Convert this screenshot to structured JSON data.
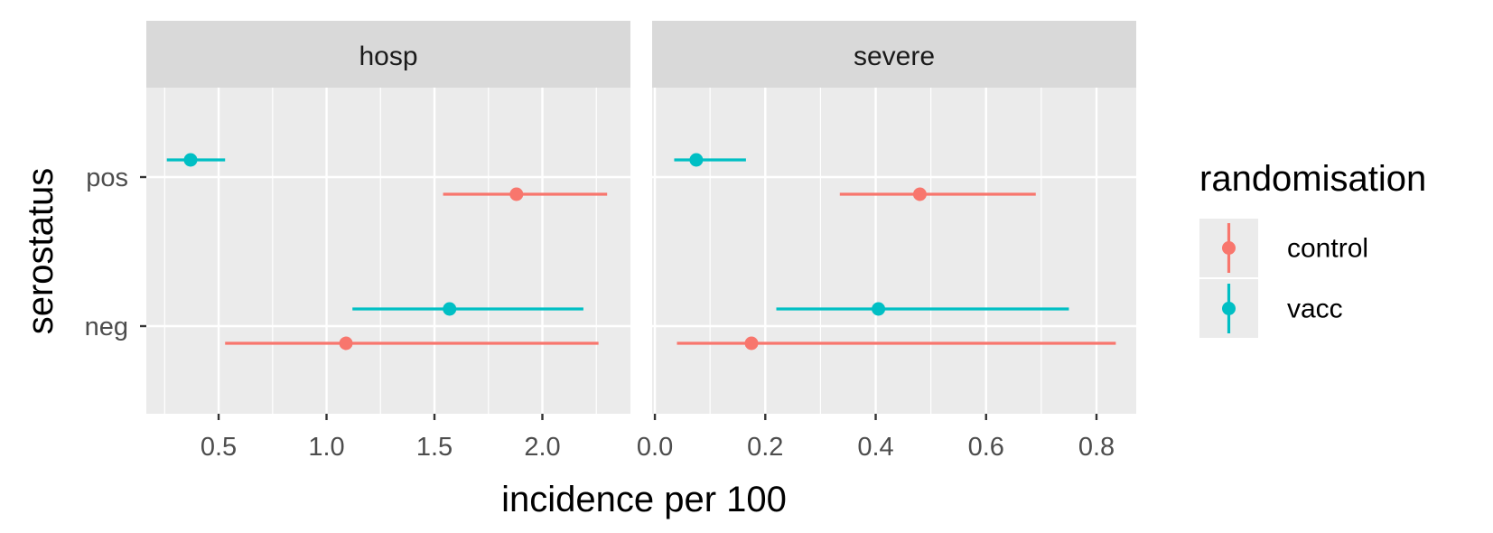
{
  "chart_data": {
    "type": "pointrange",
    "xlabel": "incidence per 100",
    "ylabel": "serostatus",
    "y_categories": [
      "pos",
      "neg"
    ],
    "legend": {
      "title": "randomisation",
      "position": "right",
      "entries": [
        {
          "name": "control",
          "color": "#F8766D"
        },
        {
          "name": "vacc",
          "color": "#00BFC4"
        }
      ]
    },
    "grid": true,
    "panels": [
      {
        "strip": "hosp",
        "xlim": [
          0.165,
          2.408
        ],
        "xticks": [
          0.5,
          1.0,
          1.5,
          2.0
        ],
        "xtick_labels": [
          "0.5",
          "1.0",
          "1.5",
          "2.0"
        ],
        "points": [
          {
            "serostatus": "pos",
            "group": "vacc",
            "estimate": 0.37,
            "lower": 0.26,
            "upper": 0.53
          },
          {
            "serostatus": "pos",
            "group": "control",
            "estimate": 1.88,
            "lower": 1.54,
            "upper": 2.3
          },
          {
            "serostatus": "neg",
            "group": "vacc",
            "estimate": 1.57,
            "lower": 1.12,
            "upper": 2.19
          },
          {
            "serostatus": "neg",
            "group": "control",
            "estimate": 1.09,
            "lower": 0.53,
            "upper": 2.26
          }
        ]
      },
      {
        "strip": "severe",
        "xlim": [
          -0.005,
          0.872
        ],
        "xticks": [
          0.0,
          0.2,
          0.4,
          0.6,
          0.8
        ],
        "xtick_labels": [
          "0.0",
          "0.2",
          "0.4",
          "0.6",
          "0.8"
        ],
        "points": [
          {
            "serostatus": "pos",
            "group": "vacc",
            "estimate": 0.075,
            "lower": 0.035,
            "upper": 0.165
          },
          {
            "serostatus": "pos",
            "group": "control",
            "estimate": 0.48,
            "lower": 0.335,
            "upper": 0.69
          },
          {
            "serostatus": "neg",
            "group": "vacc",
            "estimate": 0.405,
            "lower": 0.22,
            "upper": 0.75
          },
          {
            "serostatus": "neg",
            "group": "control",
            "estimate": 0.175,
            "lower": 0.04,
            "upper": 0.835
          }
        ]
      }
    ]
  }
}
